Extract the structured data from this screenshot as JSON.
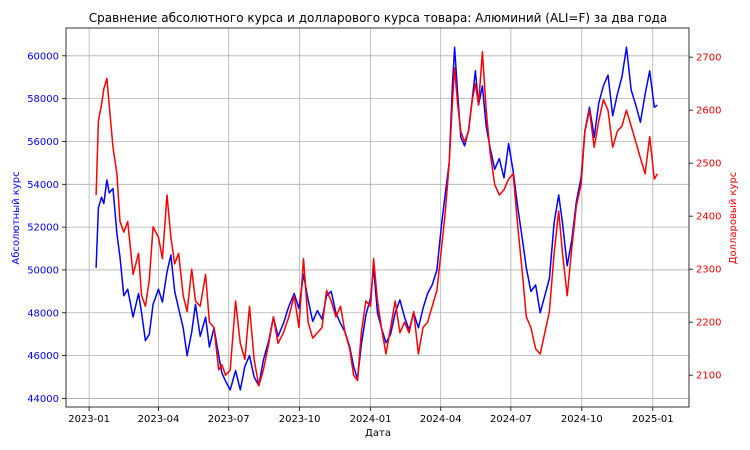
{
  "chart_data": {
    "type": "line",
    "title": "Сравнение абсолютного курса и долларового курса товара: Алюминий (ALI=F) за два года",
    "xlabel": "Дата",
    "ylabel_left": "Абсолютный курс",
    "ylabel_right": "Долларовый курс",
    "grid": true,
    "x_ticks": [
      "2023-01",
      "2023-04",
      "2023-07",
      "2023-10",
      "2024-01",
      "2024-04",
      "2024-07",
      "2024-10",
      "2025-01"
    ],
    "y_left_ticks": [
      44000,
      46000,
      48000,
      50000,
      52000,
      54000,
      56000,
      58000,
      60000
    ],
    "y_right_ticks": [
      2100,
      2200,
      2300,
      2400,
      2500,
      2600,
      2700
    ],
    "ylim_left": [
      43600,
      61300
    ],
    "ylim_right": [
      2040,
      2755
    ],
    "colors": {
      "left": "#0000ff",
      "right": "#ff0000"
    },
    "series": [
      {
        "axis": "left",
        "values": [
          [
            "2023-01-10",
            50100
          ],
          [
            "2023-01-13",
            52900
          ],
          [
            "2023-01-17",
            53400
          ],
          [
            "2023-01-20",
            53100
          ],
          [
            "2023-01-24",
            54200
          ],
          [
            "2023-01-27",
            53600
          ],
          [
            "2023-02-01",
            53800
          ],
          [
            "2023-02-06",
            51700
          ],
          [
            "2023-02-10",
            50600
          ],
          [
            "2023-02-15",
            48800
          ],
          [
            "2023-02-20",
            49100
          ],
          [
            "2023-02-27",
            47800
          ],
          [
            "2023-03-06",
            48900
          ],
          [
            "2023-03-10",
            48000
          ],
          [
            "2023-03-15",
            46700
          ],
          [
            "2023-03-20",
            47000
          ],
          [
            "2023-03-25",
            48400
          ],
          [
            "2023-04-01",
            49100
          ],
          [
            "2023-04-06",
            48500
          ],
          [
            "2023-04-12",
            49900
          ],
          [
            "2023-04-17",
            50700
          ],
          [
            "2023-04-22",
            49000
          ],
          [
            "2023-04-27",
            48200
          ],
          [
            "2023-05-03",
            47300
          ],
          [
            "2023-05-08",
            46000
          ],
          [
            "2023-05-14",
            47100
          ],
          [
            "2023-05-19",
            48400
          ],
          [
            "2023-05-25",
            46900
          ],
          [
            "2023-06-01",
            47800
          ],
          [
            "2023-06-06",
            46400
          ],
          [
            "2023-06-12",
            47300
          ],
          [
            "2023-06-18",
            46000
          ],
          [
            "2023-06-22",
            45200
          ],
          [
            "2023-06-27",
            44800
          ],
          [
            "2023-07-03",
            44400
          ],
          [
            "2023-07-10",
            45300
          ],
          [
            "2023-07-16",
            44400
          ],
          [
            "2023-07-22",
            45500
          ],
          [
            "2023-07-28",
            46000
          ],
          [
            "2023-08-03",
            45000
          ],
          [
            "2023-08-09",
            44600
          ],
          [
            "2023-08-15",
            45800
          ],
          [
            "2023-08-22",
            46700
          ],
          [
            "2023-08-28",
            47800
          ],
          [
            "2023-09-03",
            46900
          ],
          [
            "2023-09-10",
            47500
          ],
          [
            "2023-09-17",
            48300
          ],
          [
            "2023-09-24",
            48900
          ],
          [
            "2023-09-30",
            48200
          ],
          [
            "2023-10-06",
            49800
          ],
          [
            "2023-10-12",
            48600
          ],
          [
            "2023-10-18",
            47600
          ],
          [
            "2023-10-24",
            48100
          ],
          [
            "2023-10-30",
            47700
          ],
          [
            "2023-11-05",
            48800
          ],
          [
            "2023-11-11",
            49000
          ],
          [
            "2023-11-17",
            48000
          ],
          [
            "2023-11-23",
            47500
          ],
          [
            "2023-11-29",
            47100
          ],
          [
            "2023-12-05",
            46400
          ],
          [
            "2023-12-10",
            45500
          ],
          [
            "2023-12-15",
            44900
          ],
          [
            "2023-12-20",
            46500
          ],
          [
            "2023-12-26",
            47900
          ],
          [
            "2024-01-01",
            48700
          ],
          [
            "2024-01-05",
            50100
          ],
          [
            "2024-01-10",
            48000
          ],
          [
            "2024-01-15",
            47300
          ],
          [
            "2024-01-21",
            46600
          ],
          [
            "2024-01-27",
            47000
          ],
          [
            "2024-02-02",
            48000
          ],
          [
            "2024-02-08",
            48600
          ],
          [
            "2024-02-14",
            47800
          ],
          [
            "2024-02-20",
            47200
          ],
          [
            "2024-02-26",
            48000
          ],
          [
            "2024-03-03",
            47300
          ],
          [
            "2024-03-09",
            48200
          ],
          [
            "2024-03-15",
            48900
          ],
          [
            "2024-03-21",
            49300
          ],
          [
            "2024-03-27",
            50000
          ],
          [
            "2024-04-02",
            52100
          ],
          [
            "2024-04-07",
            53600
          ],
          [
            "2024-04-12",
            55000
          ],
          [
            "2024-04-16",
            58500
          ],
          [
            "2024-04-19",
            60400
          ],
          [
            "2024-04-23",
            58200
          ],
          [
            "2024-04-27",
            56200
          ],
          [
            "2024-05-02",
            55800
          ],
          [
            "2024-05-07",
            56500
          ],
          [
            "2024-05-12",
            58000
          ],
          [
            "2024-05-16",
            59300
          ],
          [
            "2024-05-20",
            57700
          ],
          [
            "2024-05-25",
            58600
          ],
          [
            "2024-05-30",
            56700
          ],
          [
            "2024-06-04",
            55700
          ],
          [
            "2024-06-10",
            54700
          ],
          [
            "2024-06-16",
            55200
          ],
          [
            "2024-06-22",
            54300
          ],
          [
            "2024-06-28",
            55900
          ],
          [
            "2024-07-04",
            54600
          ],
          [
            "2024-07-10",
            52900
          ],
          [
            "2024-07-16",
            51400
          ],
          [
            "2024-07-21",
            50100
          ],
          [
            "2024-07-27",
            49000
          ],
          [
            "2024-08-02",
            49300
          ],
          [
            "2024-08-08",
            48000
          ],
          [
            "2024-08-14",
            48800
          ],
          [
            "2024-08-20",
            49600
          ],
          [
            "2024-08-26",
            52200
          ],
          [
            "2024-09-01",
            53500
          ],
          [
            "2024-09-06",
            52200
          ],
          [
            "2024-09-12",
            50200
          ],
          [
            "2024-09-18",
            51400
          ],
          [
            "2024-09-24",
            53200
          ],
          [
            "2024-09-30",
            54300
          ],
          [
            "2024-10-05",
            56500
          ],
          [
            "2024-10-11",
            57600
          ],
          [
            "2024-10-17",
            56200
          ],
          [
            "2024-10-23",
            57800
          ],
          [
            "2024-10-29",
            58600
          ],
          [
            "2024-11-04",
            59100
          ],
          [
            "2024-11-10",
            57200
          ],
          [
            "2024-11-16",
            58200
          ],
          [
            "2024-11-22",
            59000
          ],
          [
            "2024-11-28",
            60400
          ],
          [
            "2024-12-04",
            58400
          ],
          [
            "2024-12-10",
            57700
          ],
          [
            "2024-12-16",
            56900
          ],
          [
            "2024-12-22",
            58200
          ],
          [
            "2024-12-28",
            59300
          ],
          [
            "2025-01-03",
            57600
          ],
          [
            "2025-01-07",
            57700
          ]
        ]
      },
      {
        "axis": "right",
        "values": [
          [
            "2023-01-10",
            2440
          ],
          [
            "2023-01-13",
            2580
          ],
          [
            "2023-01-17",
            2610
          ],
          [
            "2023-01-20",
            2640
          ],
          [
            "2023-01-24",
            2660
          ],
          [
            "2023-01-27",
            2610
          ],
          [
            "2023-02-01",
            2530
          ],
          [
            "2023-02-06",
            2480
          ],
          [
            "2023-02-10",
            2390
          ],
          [
            "2023-02-15",
            2370
          ],
          [
            "2023-02-20",
            2390
          ],
          [
            "2023-02-27",
            2290
          ],
          [
            "2023-03-06",
            2330
          ],
          [
            "2023-03-10",
            2250
          ],
          [
            "2023-03-15",
            2230
          ],
          [
            "2023-03-20",
            2280
          ],
          [
            "2023-03-25",
            2380
          ],
          [
            "2023-04-01",
            2360
          ],
          [
            "2023-04-06",
            2320
          ],
          [
            "2023-04-12",
            2440
          ],
          [
            "2023-04-17",
            2360
          ],
          [
            "2023-04-22",
            2310
          ],
          [
            "2023-04-27",
            2330
          ],
          [
            "2023-05-03",
            2250
          ],
          [
            "2023-05-08",
            2220
          ],
          [
            "2023-05-14",
            2300
          ],
          [
            "2023-05-19",
            2240
          ],
          [
            "2023-05-25",
            2230
          ],
          [
            "2023-06-01",
            2290
          ],
          [
            "2023-06-06",
            2200
          ],
          [
            "2023-06-12",
            2190
          ],
          [
            "2023-06-18",
            2110
          ],
          [
            "2023-06-22",
            2120
          ],
          [
            "2023-06-27",
            2100
          ],
          [
            "2023-07-03",
            2110
          ],
          [
            "2023-07-10",
            2240
          ],
          [
            "2023-07-16",
            2160
          ],
          [
            "2023-07-22",
            2130
          ],
          [
            "2023-07-28",
            2230
          ],
          [
            "2023-08-03",
            2130
          ],
          [
            "2023-08-09",
            2080
          ],
          [
            "2023-08-15",
            2110
          ],
          [
            "2023-08-22",
            2160
          ],
          [
            "2023-08-28",
            2210
          ],
          [
            "2023-09-03",
            2160
          ],
          [
            "2023-09-10",
            2180
          ],
          [
            "2023-09-17",
            2210
          ],
          [
            "2023-09-24",
            2250
          ],
          [
            "2023-09-30",
            2190
          ],
          [
            "2023-10-06",
            2320
          ],
          [
            "2023-10-12",
            2200
          ],
          [
            "2023-10-18",
            2170
          ],
          [
            "2023-10-24",
            2180
          ],
          [
            "2023-10-30",
            2190
          ],
          [
            "2023-11-05",
            2260
          ],
          [
            "2023-11-11",
            2240
          ],
          [
            "2023-11-17",
            2210
          ],
          [
            "2023-11-23",
            2230
          ],
          [
            "2023-11-29",
            2180
          ],
          [
            "2023-12-05",
            2150
          ],
          [
            "2023-12-10",
            2100
          ],
          [
            "2023-12-15",
            2090
          ],
          [
            "2023-12-20",
            2180
          ],
          [
            "2023-12-26",
            2240
          ],
          [
            "2024-01-01",
            2230
          ],
          [
            "2024-01-05",
            2320
          ],
          [
            "2024-01-10",
            2240
          ],
          [
            "2024-01-15",
            2190
          ],
          [
            "2024-01-21",
            2140
          ],
          [
            "2024-01-27",
            2190
          ],
          [
            "2024-02-02",
            2240
          ],
          [
            "2024-02-08",
            2180
          ],
          [
            "2024-02-14",
            2200
          ],
          [
            "2024-02-20",
            2180
          ],
          [
            "2024-02-26",
            2220
          ],
          [
            "2024-03-03",
            2140
          ],
          [
            "2024-03-09",
            2190
          ],
          [
            "2024-03-15",
            2200
          ],
          [
            "2024-03-21",
            2230
          ],
          [
            "2024-03-27",
            2260
          ],
          [
            "2024-04-02",
            2340
          ],
          [
            "2024-04-07",
            2410
          ],
          [
            "2024-04-12",
            2500
          ],
          [
            "2024-04-16",
            2610
          ],
          [
            "2024-04-19",
            2680
          ],
          [
            "2024-04-23",
            2610
          ],
          [
            "2024-04-27",
            2560
          ],
          [
            "2024-05-02",
            2540
          ],
          [
            "2024-05-07",
            2560
          ],
          [
            "2024-05-12",
            2620
          ],
          [
            "2024-05-16",
            2650
          ],
          [
            "2024-05-20",
            2610
          ],
          [
            "2024-05-25",
            2710
          ],
          [
            "2024-05-30",
            2600
          ],
          [
            "2024-06-04",
            2520
          ],
          [
            "2024-06-10",
            2460
          ],
          [
            "2024-06-16",
            2440
          ],
          [
            "2024-06-22",
            2450
          ],
          [
            "2024-06-28",
            2470
          ],
          [
            "2024-07-04",
            2480
          ],
          [
            "2024-07-10",
            2380
          ],
          [
            "2024-07-16",
            2290
          ],
          [
            "2024-07-21",
            2210
          ],
          [
            "2024-07-27",
            2190
          ],
          [
            "2024-08-02",
            2150
          ],
          [
            "2024-08-08",
            2140
          ],
          [
            "2024-08-14",
            2180
          ],
          [
            "2024-08-20",
            2220
          ],
          [
            "2024-08-26",
            2330
          ],
          [
            "2024-09-01",
            2410
          ],
          [
            "2024-09-06",
            2330
          ],
          [
            "2024-09-12",
            2250
          ],
          [
            "2024-09-18",
            2340
          ],
          [
            "2024-09-24",
            2420
          ],
          [
            "2024-09-30",
            2460
          ],
          [
            "2024-10-05",
            2560
          ],
          [
            "2024-10-11",
            2600
          ],
          [
            "2024-10-17",
            2530
          ],
          [
            "2024-10-23",
            2580
          ],
          [
            "2024-10-29",
            2620
          ],
          [
            "2024-11-04",
            2600
          ],
          [
            "2024-11-10",
            2530
          ],
          [
            "2024-11-16",
            2560
          ],
          [
            "2024-11-22",
            2570
          ],
          [
            "2024-11-28",
            2600
          ],
          [
            "2024-12-04",
            2570
          ],
          [
            "2024-12-10",
            2540
          ],
          [
            "2024-12-16",
            2510
          ],
          [
            "2024-12-22",
            2480
          ],
          [
            "2024-12-28",
            2550
          ],
          [
            "2025-01-03",
            2470
          ],
          [
            "2025-01-07",
            2480
          ]
        ]
      }
    ]
  }
}
